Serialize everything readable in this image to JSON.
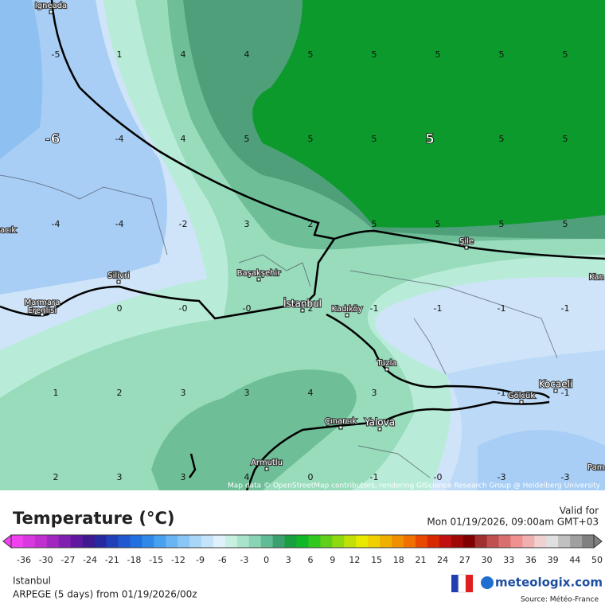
{
  "map": {
    "attribution": "Map data © OpenStreetMap contributors, rendering GIScience Research Group @ Heidelberg University",
    "places": [
      "Igneada",
      "Silivri",
      "Marmara\nEreglisi",
      "Başakşehir",
      "İstanbul",
      "Kadıköy",
      "Şile",
      "Tuzla",
      "Gölcük",
      "Kocaeli",
      "Çınarcık",
      "Yalova",
      "Armutlu",
      "Kan",
      "Pam",
      "acık"
    ],
    "grid_values": [
      [
        "-5",
        "1",
        "4",
        "4",
        "5",
        "5",
        "5",
        "5",
        "5"
      ],
      [
        "-6",
        "-4",
        "4",
        "5",
        "5",
        "5",
        "5",
        "5",
        "5"
      ],
      [
        "-4",
        "-4",
        "-2",
        "3",
        "2",
        "5",
        "5",
        "5",
        "5"
      ],
      [
        null,
        "0",
        "-0",
        "-0",
        "2",
        "-1",
        "-1",
        "-1",
        "-1"
      ],
      [
        "1",
        "2",
        "3",
        "3",
        "4",
        "3",
        null,
        "-1",
        "-1"
      ],
      [
        "2",
        "3",
        "3",
        "4",
        "0",
        "-1",
        "-0",
        "-3",
        "-3"
      ]
    ]
  },
  "legend": {
    "title": "Temperature (°C)",
    "ticks": [
      "-36",
      "-30",
      "-27",
      "-24",
      "-21",
      "-18",
      "-15",
      "-12",
      "-9",
      "-6",
      "-3",
      "0",
      "3",
      "6",
      "9",
      "12",
      "15",
      "18",
      "21",
      "24",
      "27",
      "30",
      "33",
      "36",
      "39",
      "44",
      "50"
    ],
    "colors": [
      "#f040f0",
      "#d838e0",
      "#c030d0",
      "#a028c0",
      "#8020b0",
      "#6018a0",
      "#401890",
      "#2828a0",
      "#2040b8",
      "#2058d0",
      "#2070e0",
      "#3088e8",
      "#48a0f0",
      "#68b4f4",
      "#88c6f6",
      "#a8d6f8",
      "#c4e4fa",
      "#e0f0fc",
      "#c8f0e0",
      "#a8e4cc",
      "#88d4b4",
      "#60bc94",
      "#3aa070",
      "#18a040",
      "#10b828",
      "#30c820",
      "#60d018",
      "#90d810",
      "#c0e008",
      "#e8e800",
      "#f0d000",
      "#f0b000",
      "#f09000",
      "#f07000",
      "#e84800",
      "#d82800",
      "#c01010",
      "#a00808",
      "#800000",
      "#a03030",
      "#c05050",
      "#d87070",
      "#f09090",
      "#f0b0b0",
      "#f0d0d0",
      "#e0e0e0",
      "#c0c0c0",
      "#a0a0a0",
      "#808080"
    ]
  },
  "header": {
    "valid_label": "Valid for",
    "valid_time": "Mon 01/19/2026, 09:00am GMT+03"
  },
  "footer": {
    "location": "Istanbul",
    "model": "ARPEGE (5 days) from 01/19/2026/00z",
    "brand": "meteologix.com",
    "source": "Source: Météo-France"
  }
}
